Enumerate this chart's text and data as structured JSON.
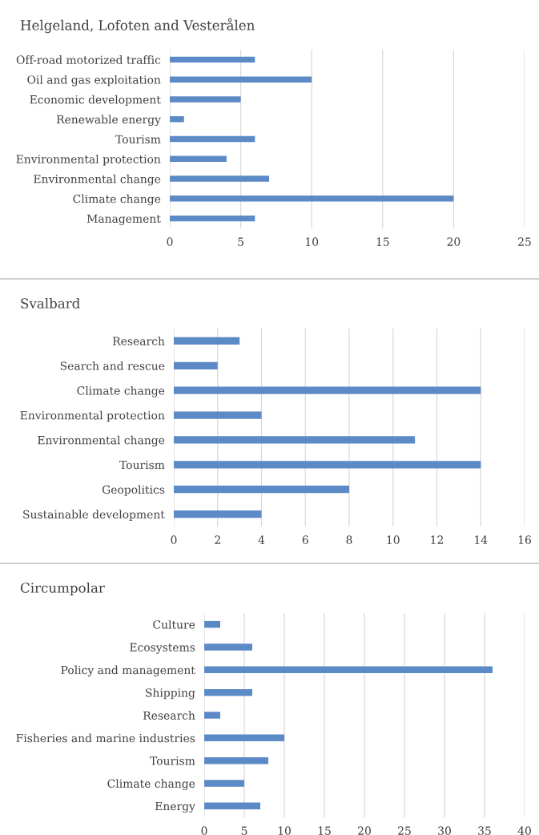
{
  "chart_data": [
    {
      "type": "bar",
      "orientation": "horizontal",
      "title": "Helgeland, Lofoten and Vesterålen",
      "categories": [
        "Off-road motorized traffic",
        "Oil and gas exploitation",
        "Economic development",
        "Renewable energy",
        "Tourism",
        "Environmental protection",
        "Environmental change",
        "Climate change",
        "Management"
      ],
      "values": [
        6,
        10,
        5,
        1,
        6,
        4,
        7,
        20,
        6
      ],
      "color": "#5b8ac6",
      "xlim": [
        0,
        25
      ],
      "xticks": [
        0,
        5,
        10,
        15,
        20,
        25
      ],
      "grid": "x"
    },
    {
      "type": "bar",
      "orientation": "horizontal",
      "title": "Svalbard",
      "categories": [
        "Research",
        "Search and rescue",
        "Climate change",
        "Environmental protection",
        "Environmental change",
        "Tourism",
        "Geopolitics",
        "Sustainable development"
      ],
      "values": [
        3,
        2,
        14,
        4,
        11,
        14,
        8,
        4
      ],
      "color": "#5b8ac6",
      "xlim": [
        0,
        16
      ],
      "xticks": [
        0,
        2,
        4,
        6,
        8,
        10,
        12,
        14,
        16
      ],
      "grid": "x"
    },
    {
      "type": "bar",
      "orientation": "horizontal",
      "title": "Circumpolar",
      "categories": [
        "Culture",
        "Ecosystems",
        "Policy and management",
        "Shipping",
        "Research",
        "Fisheries and marine industries",
        "Tourism",
        "Climate change",
        "Energy"
      ],
      "values": [
        2,
        6,
        36,
        6,
        2,
        10,
        8,
        5,
        7
      ],
      "color": "#5b8ac6",
      "xlim": [
        0,
        40
      ],
      "xticks": [
        0,
        5,
        10,
        15,
        20,
        25,
        30,
        35,
        40
      ],
      "grid": "x"
    }
  ]
}
